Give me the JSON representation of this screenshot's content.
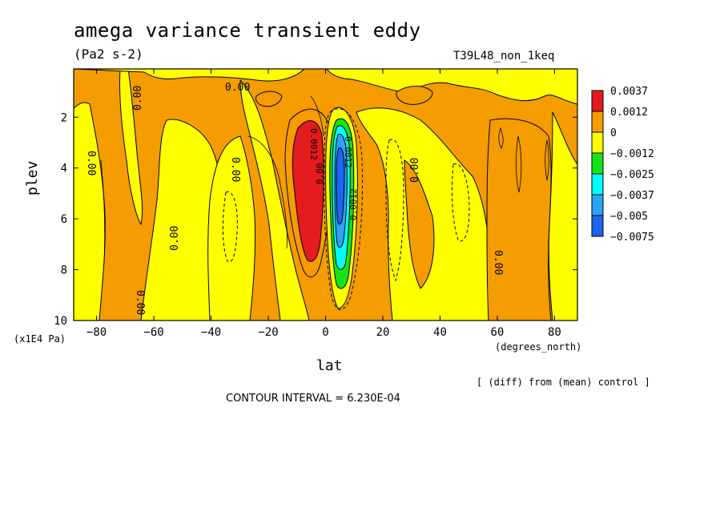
{
  "header": {
    "title": "amega variance transient eddy",
    "units": "(Pa2 s-2)",
    "run": "T39L48_non_1keq"
  },
  "footer": {
    "diff_note": "[ (diff) from (mean) control ]",
    "contour_interval": "CONTOUR INTERVAL = 6.230E-04"
  },
  "chart_data": {
    "type": "heatmap",
    "title": "amega variance transient eddy",
    "subtitle": "(Pa2 s-2)",
    "xlabel": "lat",
    "x_unit": "(degrees_north)",
    "ylabel": "plev",
    "y_unit": "(x1E4 Pa)",
    "xlim": [
      -88,
      88
    ],
    "ylim": [
      10,
      0.1
    ],
    "x_ticks": [
      -80,
      -60,
      -40,
      -20,
      0,
      20,
      40,
      60,
      80
    ],
    "y_ticks": [
      2,
      4,
      6,
      8,
      10
    ],
    "colorbar": {
      "levels": [
        "0.0037",
        "0.0012",
        "0",
        "-0.0012",
        "-0.0025",
        "-0.0037",
        "-0.005",
        "-0.0075"
      ],
      "colors": [
        "#e41a1c",
        "#f59c00",
        "#ffff00",
        "#14e414",
        "#00ffff",
        "#2aa5f5",
        "#1e64f0"
      ]
    },
    "contour_labels": [
      "0.00",
      "0.00",
      "0.00",
      "0.00",
      "0.00",
      "0.00",
      "0.00",
      "0.00",
      "0.00",
      "0.0012",
      "0.0012",
      "0.0012"
    ],
    "features": [
      {
        "name": "positive maximum",
        "lat": -5,
        "plev": [
          2.5,
          7.5
        ],
        "value": 0.0037
      },
      {
        "name": "negative minimum",
        "lat": 5,
        "plev": [
          2.0,
          8.0
        ],
        "value": -0.0075
      }
    ],
    "contour_interval": "6.230E-04",
    "grid": false,
    "legend": "right"
  }
}
